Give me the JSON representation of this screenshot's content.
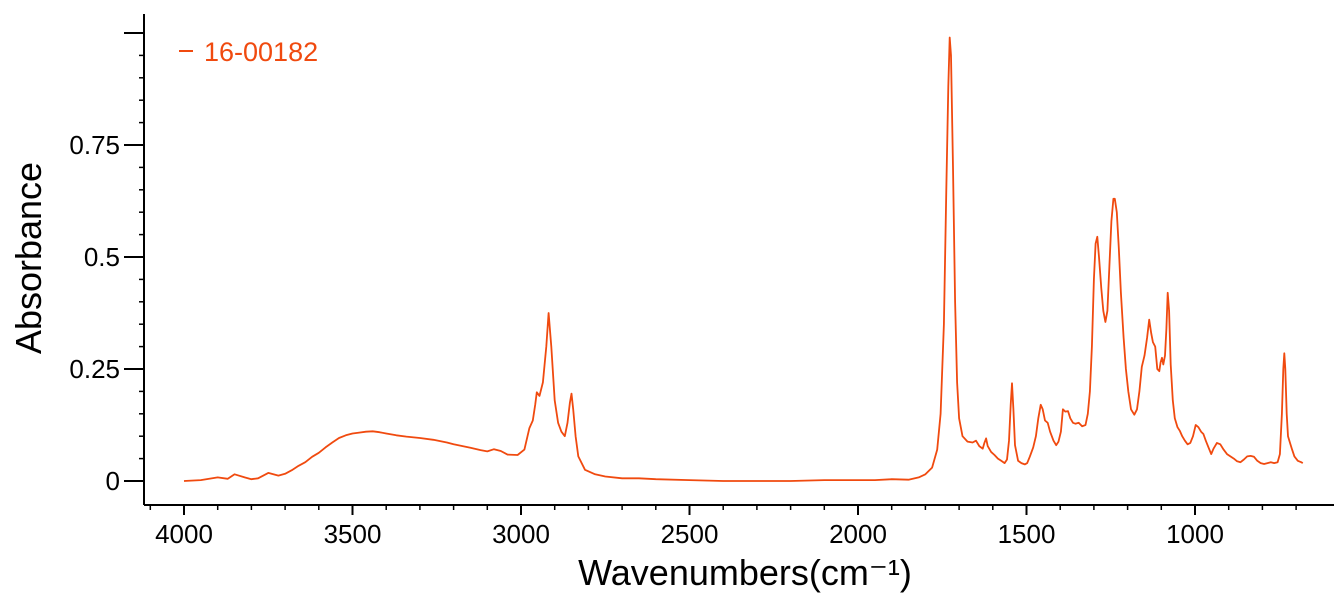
{
  "chart_data": {
    "type": "line",
    "title": "",
    "xlabel": "Wavenumbers(cm⁻¹)",
    "ylabel": "Absorbance",
    "xlim": [
      4100,
      650
    ],
    "ylim": [
      -0.05,
      1.02
    ],
    "x_reversed": true,
    "x_ticks": [
      4000,
      3500,
      3000,
      2500,
      2000,
      1500,
      1000
    ],
    "x_tick_labels": [
      "4000",
      "3500",
      "3000",
      "2500",
      "2000",
      "1500",
      "1000"
    ],
    "y_ticks": [
      0,
      0.25,
      0.5,
      0.75
    ],
    "y_tick_labels": [
      "0",
      "0.25",
      "0.5",
      "0.75"
    ],
    "y_top_tick": 1.0,
    "grid": false,
    "legend_position": "top-left",
    "series": [
      {
        "name": "16-00182",
        "color": "#f04a0f",
        "points": [
          [
            4000,
            0.0
          ],
          [
            3950,
            0.002
          ],
          [
            3900,
            0.008
          ],
          [
            3870,
            0.005
          ],
          [
            3850,
            0.015
          ],
          [
            3820,
            0.008
          ],
          [
            3800,
            0.004
          ],
          [
            3780,
            0.006
          ],
          [
            3750,
            0.018
          ],
          [
            3720,
            0.012
          ],
          [
            3700,
            0.016
          ],
          [
            3680,
            0.024
          ],
          [
            3660,
            0.034
          ],
          [
            3640,
            0.042
          ],
          [
            3620,
            0.054
          ],
          [
            3600,
            0.063
          ],
          [
            3580,
            0.075
          ],
          [
            3560,
            0.086
          ],
          [
            3540,
            0.096
          ],
          [
            3520,
            0.102
          ],
          [
            3500,
            0.106
          ],
          [
            3480,
            0.108
          ],
          [
            3460,
            0.11
          ],
          [
            3440,
            0.111
          ],
          [
            3420,
            0.109
          ],
          [
            3400,
            0.106
          ],
          [
            3370,
            0.102
          ],
          [
            3340,
            0.099
          ],
          [
            3300,
            0.096
          ],
          [
            3260,
            0.092
          ],
          [
            3220,
            0.086
          ],
          [
            3200,
            0.082
          ],
          [
            3150,
            0.074
          ],
          [
            3120,
            0.069
          ],
          [
            3100,
            0.066
          ],
          [
            3080,
            0.071
          ],
          [
            3060,
            0.067
          ],
          [
            3040,
            0.059
          ],
          [
            3010,
            0.058
          ],
          [
            2990,
            0.07
          ],
          [
            2975,
            0.118
          ],
          [
            2965,
            0.135
          ],
          [
            2958,
            0.17
          ],
          [
            2953,
            0.198
          ],
          [
            2945,
            0.19
          ],
          [
            2935,
            0.22
          ],
          [
            2925,
            0.3
          ],
          [
            2918,
            0.375
          ],
          [
            2910,
            0.3
          ],
          [
            2900,
            0.18
          ],
          [
            2890,
            0.13
          ],
          [
            2880,
            0.11
          ],
          [
            2870,
            0.1
          ],
          [
            2862,
            0.13
          ],
          [
            2855,
            0.175
          ],
          [
            2850,
            0.195
          ],
          [
            2845,
            0.16
          ],
          [
            2838,
            0.1
          ],
          [
            2830,
            0.055
          ],
          [
            2810,
            0.025
          ],
          [
            2780,
            0.015
          ],
          [
            2750,
            0.01
          ],
          [
            2700,
            0.006
          ],
          [
            2650,
            0.006
          ],
          [
            2600,
            0.004
          ],
          [
            2500,
            0.002
          ],
          [
            2400,
            0.0
          ],
          [
            2300,
            0.0
          ],
          [
            2200,
            0.0
          ],
          [
            2100,
            0.002
          ],
          [
            2000,
            0.002
          ],
          [
            1950,
            0.002
          ],
          [
            1900,
            0.004
          ],
          [
            1850,
            0.003
          ],
          [
            1820,
            0.008
          ],
          [
            1800,
            0.015
          ],
          [
            1780,
            0.03
          ],
          [
            1765,
            0.07
          ],
          [
            1755,
            0.15
          ],
          [
            1745,
            0.35
          ],
          [
            1738,
            0.65
          ],
          [
            1732,
            0.88
          ],
          [
            1728,
            0.99
          ],
          [
            1724,
            0.95
          ],
          [
            1718,
            0.7
          ],
          [
            1712,
            0.4
          ],
          [
            1706,
            0.22
          ],
          [
            1700,
            0.14
          ],
          [
            1690,
            0.1
          ],
          [
            1675,
            0.088
          ],
          [
            1660,
            0.086
          ],
          [
            1650,
            0.09
          ],
          [
            1640,
            0.078
          ],
          [
            1630,
            0.072
          ],
          [
            1625,
            0.085
          ],
          [
            1620,
            0.095
          ],
          [
            1615,
            0.078
          ],
          [
            1605,
            0.065
          ],
          [
            1595,
            0.058
          ],
          [
            1585,
            0.05
          ],
          [
            1575,
            0.045
          ],
          [
            1565,
            0.04
          ],
          [
            1558,
            0.048
          ],
          [
            1552,
            0.09
          ],
          [
            1547,
            0.17
          ],
          [
            1543,
            0.218
          ],
          [
            1539,
            0.16
          ],
          [
            1534,
            0.08
          ],
          [
            1525,
            0.045
          ],
          [
            1515,
            0.04
          ],
          [
            1505,
            0.037
          ],
          [
            1498,
            0.04
          ],
          [
            1490,
            0.055
          ],
          [
            1480,
            0.075
          ],
          [
            1472,
            0.1
          ],
          [
            1465,
            0.14
          ],
          [
            1458,
            0.17
          ],
          [
            1452,
            0.16
          ],
          [
            1445,
            0.135
          ],
          [
            1437,
            0.13
          ],
          [
            1430,
            0.11
          ],
          [
            1420,
            0.09
          ],
          [
            1412,
            0.08
          ],
          [
            1405,
            0.088
          ],
          [
            1398,
            0.11
          ],
          [
            1392,
            0.16
          ],
          [
            1385,
            0.155
          ],
          [
            1377,
            0.156
          ],
          [
            1370,
            0.14
          ],
          [
            1362,
            0.13
          ],
          [
            1355,
            0.128
          ],
          [
            1345,
            0.13
          ],
          [
            1335,
            0.122
          ],
          [
            1325,
            0.125
          ],
          [
            1318,
            0.15
          ],
          [
            1312,
            0.2
          ],
          [
            1306,
            0.3
          ],
          [
            1300,
            0.45
          ],
          [
            1295,
            0.53
          ],
          [
            1290,
            0.545
          ],
          [
            1285,
            0.5
          ],
          [
            1278,
            0.43
          ],
          [
            1272,
            0.38
          ],
          [
            1266,
            0.355
          ],
          [
            1260,
            0.38
          ],
          [
            1254,
            0.48
          ],
          [
            1248,
            0.58
          ],
          [
            1242,
            0.63
          ],
          [
            1238,
            0.63
          ],
          [
            1232,
            0.6
          ],
          [
            1226,
            0.52
          ],
          [
            1220,
            0.42
          ],
          [
            1212,
            0.32
          ],
          [
            1205,
            0.25
          ],
          [
            1198,
            0.2
          ],
          [
            1190,
            0.16
          ],
          [
            1180,
            0.148
          ],
          [
            1172,
            0.16
          ],
          [
            1165,
            0.2
          ],
          [
            1158,
            0.255
          ],
          [
            1150,
            0.28
          ],
          [
            1142,
            0.32
          ],
          [
            1136,
            0.36
          ],
          [
            1130,
            0.33
          ],
          [
            1125,
            0.31
          ],
          [
            1118,
            0.3
          ],
          [
            1112,
            0.25
          ],
          [
            1106,
            0.245
          ],
          [
            1102,
            0.265
          ],
          [
            1098,
            0.275
          ],
          [
            1094,
            0.26
          ],
          [
            1089,
            0.28
          ],
          [
            1085,
            0.34
          ],
          [
            1081,
            0.42
          ],
          [
            1077,
            0.38
          ],
          [
            1072,
            0.26
          ],
          [
            1066,
            0.18
          ],
          [
            1060,
            0.14
          ],
          [
            1052,
            0.12
          ],
          [
            1045,
            0.112
          ],
          [
            1038,
            0.1
          ],
          [
            1030,
            0.09
          ],
          [
            1022,
            0.082
          ],
          [
            1014,
            0.085
          ],
          [
            1006,
            0.1
          ],
          [
            998,
            0.125
          ],
          [
            990,
            0.12
          ],
          [
            982,
            0.11
          ],
          [
            975,
            0.105
          ],
          [
            968,
            0.09
          ],
          [
            960,
            0.075
          ],
          [
            952,
            0.06
          ],
          [
            945,
            0.072
          ],
          [
            935,
            0.085
          ],
          [
            925,
            0.082
          ],
          [
            915,
            0.07
          ],
          [
            905,
            0.06
          ],
          [
            895,
            0.055
          ],
          [
            885,
            0.05
          ],
          [
            875,
            0.044
          ],
          [
            865,
            0.042
          ],
          [
            855,
            0.048
          ],
          [
            845,
            0.055
          ],
          [
            835,
            0.056
          ],
          [
            825,
            0.054
          ],
          [
            815,
            0.045
          ],
          [
            805,
            0.04
          ],
          [
            795,
            0.038
          ],
          [
            785,
            0.04
          ],
          [
            775,
            0.042
          ],
          [
            765,
            0.04
          ],
          [
            755,
            0.042
          ],
          [
            748,
            0.06
          ],
          [
            742,
            0.15
          ],
          [
            738,
            0.25
          ],
          [
            735,
            0.285
          ],
          [
            732,
            0.25
          ],
          [
            728,
            0.15
          ],
          [
            724,
            0.1
          ],
          [
            718,
            0.085
          ],
          [
            712,
            0.07
          ],
          [
            705,
            0.055
          ],
          [
            695,
            0.045
          ],
          [
            685,
            0.042
          ],
          [
            680,
            0.04
          ]
        ]
      }
    ]
  }
}
